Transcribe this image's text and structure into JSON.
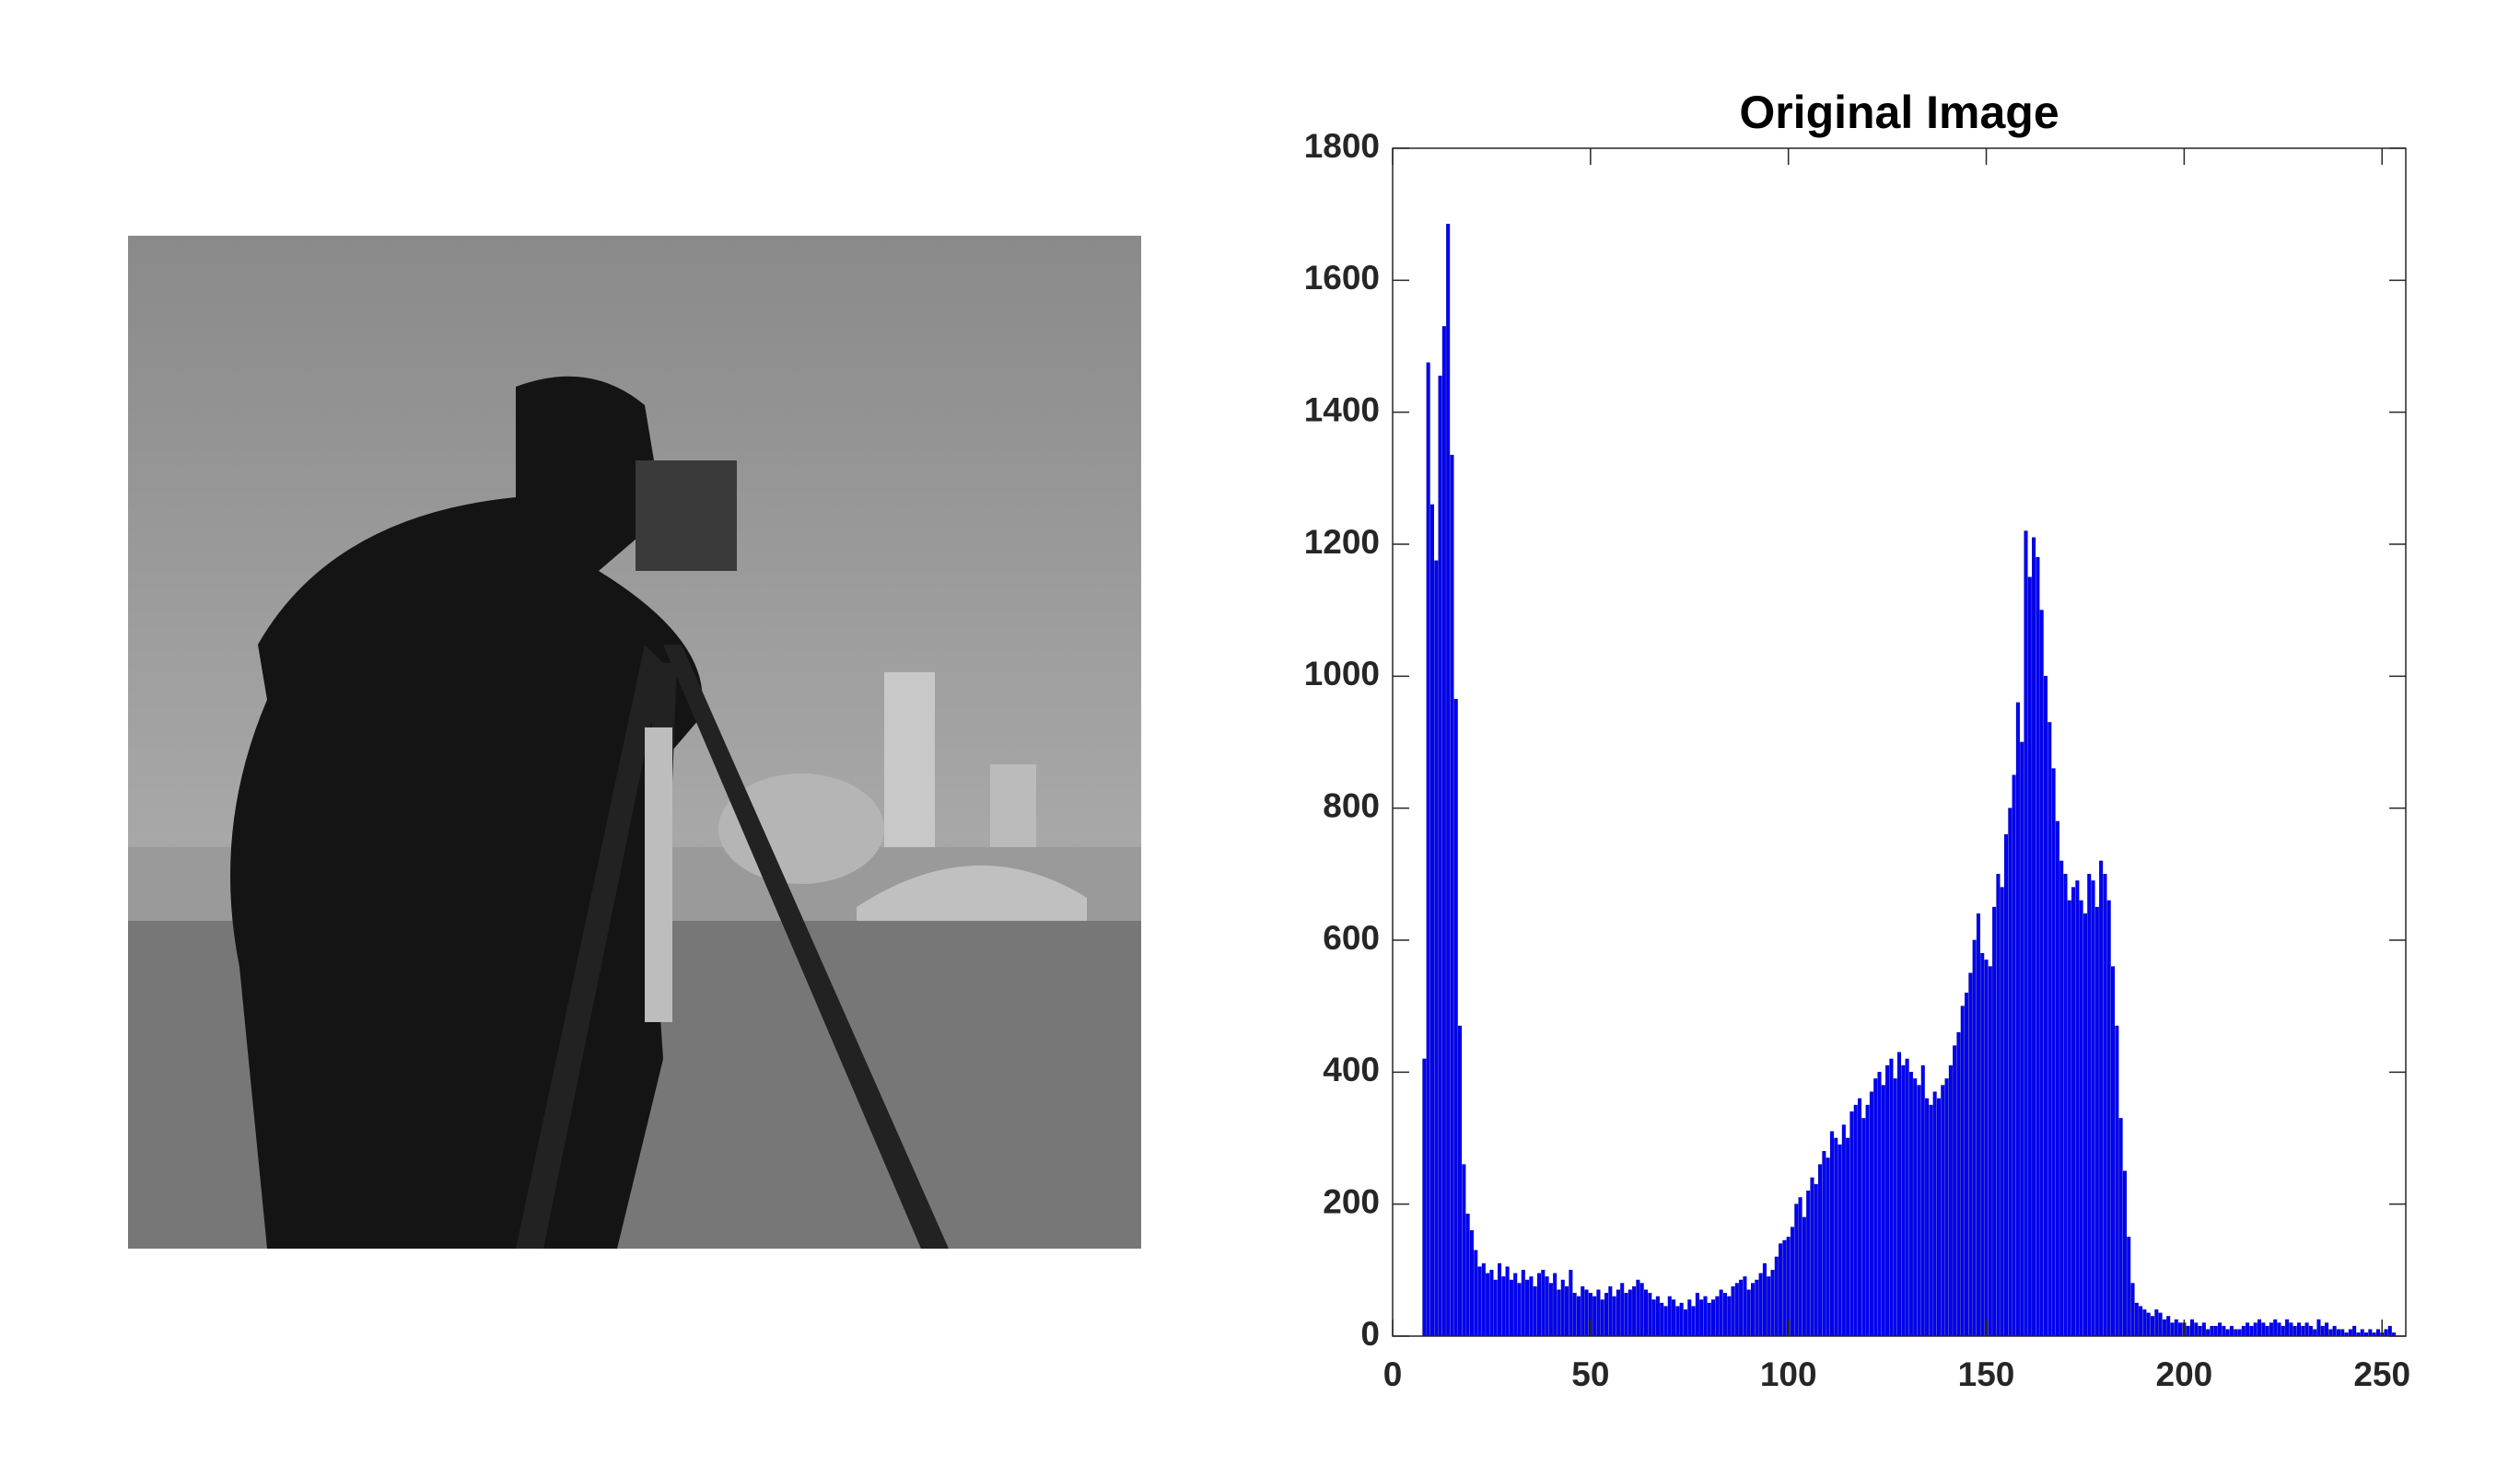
{
  "chart_data": {
    "type": "bar",
    "title": "Original Image",
    "x": [
      0,
      1,
      2,
      3,
      4,
      5,
      6,
      7,
      8,
      9,
      10,
      11,
      12,
      13,
      14,
      15,
      16,
      17,
      18,
      19,
      20,
      21,
      22,
      23,
      24,
      25,
      26,
      27,
      28,
      29,
      30,
      31,
      32,
      33,
      34,
      35,
      36,
      37,
      38,
      39,
      40,
      41,
      42,
      43,
      44,
      45,
      46,
      47,
      48,
      49,
      50,
      51,
      52,
      53,
      54,
      55,
      56,
      57,
      58,
      59,
      60,
      61,
      62,
      63,
      64,
      65,
      66,
      67,
      68,
      69,
      70,
      71,
      72,
      73,
      74,
      75,
      76,
      77,
      78,
      79,
      80,
      81,
      82,
      83,
      84,
      85,
      86,
      87,
      88,
      89,
      90,
      91,
      92,
      93,
      94,
      95,
      96,
      97,
      98,
      99,
      100,
      101,
      102,
      103,
      104,
      105,
      106,
      107,
      108,
      109,
      110,
      111,
      112,
      113,
      114,
      115,
      116,
      117,
      118,
      119,
      120,
      121,
      122,
      123,
      124,
      125,
      126,
      127,
      128,
      129,
      130,
      131,
      132,
      133,
      134,
      135,
      136,
      137,
      138,
      139,
      140,
      141,
      142,
      143,
      144,
      145,
      146,
      147,
      148,
      149,
      150,
      151,
      152,
      153,
      154,
      155,
      156,
      157,
      158,
      159,
      160,
      161,
      162,
      163,
      164,
      165,
      166,
      167,
      168,
      169,
      170,
      171,
      172,
      173,
      174,
      175,
      176,
      177,
      178,
      179,
      180,
      181,
      182,
      183,
      184,
      185,
      186,
      187,
      188,
      189,
      190,
      191,
      192,
      193,
      194,
      195,
      196,
      197,
      198,
      199,
      200,
      201,
      202,
      203,
      204,
      205,
      206,
      207,
      208,
      209,
      210,
      211,
      212,
      213,
      214,
      215,
      216,
      217,
      218,
      219,
      220,
      221,
      222,
      223,
      224,
      225,
      226,
      227,
      228,
      229,
      230,
      231,
      232,
      233,
      234,
      235,
      236,
      237,
      238,
      239,
      240,
      241,
      242,
      243,
      244,
      245,
      246,
      247,
      248,
      249,
      250,
      251,
      252,
      253,
      254,
      255
    ],
    "values": [
      0,
      0,
      0,
      0,
      0,
      0,
      0,
      0,
      420,
      1475,
      1260,
      1175,
      1455,
      1530,
      1685,
      1335,
      965,
      470,
      260,
      185,
      160,
      130,
      105,
      110,
      95,
      100,
      85,
      110,
      90,
      105,
      85,
      95,
      80,
      100,
      85,
      90,
      75,
      95,
      100,
      90,
      80,
      95,
      70,
      85,
      75,
      100,
      65,
      60,
      75,
      70,
      65,
      60,
      70,
      55,
      65,
      75,
      60,
      70,
      80,
      65,
      70,
      75,
      85,
      80,
      70,
      65,
      55,
      60,
      50,
      45,
      60,
      55,
      45,
      50,
      40,
      55,
      45,
      65,
      55,
      60,
      50,
      55,
      60,
      70,
      65,
      60,
      75,
      80,
      85,
      90,
      70,
      80,
      85,
      95,
      110,
      90,
      100,
      120,
      140,
      145,
      150,
      165,
      200,
      210,
      180,
      220,
      240,
      230,
      260,
      280,
      270,
      310,
      300,
      290,
      320,
      300,
      340,
      350,
      360,
      330,
      350,
      370,
      390,
      400,
      380,
      410,
      420,
      390,
      430,
      410,
      420,
      400,
      390,
      380,
      410,
      360,
      350,
      370,
      360,
      380,
      390,
      410,
      440,
      460,
      500,
      520,
      550,
      600,
      640,
      580,
      570,
      560,
      650,
      700,
      680,
      760,
      800,
      850,
      960,
      900,
      1220,
      1150,
      1210,
      1180,
      1100,
      1000,
      930,
      860,
      780,
      720,
      700,
      660,
      680,
      690,
      660,
      640,
      700,
      690,
      650,
      720,
      700,
      660,
      560,
      470,
      330,
      250,
      150,
      80,
      50,
      45,
      40,
      35,
      30,
      40,
      35,
      25,
      30,
      20,
      25,
      20,
      20,
      15,
      25,
      20,
      15,
      20,
      10,
      15,
      15,
      20,
      15,
      10,
      15,
      10,
      10,
      15,
      20,
      15,
      20,
      25,
      20,
      15,
      20,
      25,
      20,
      15,
      25,
      20,
      15,
      20,
      15,
      20,
      15,
      10,
      25,
      15,
      20,
      10,
      15,
      10,
      10,
      5,
      10,
      15,
      5,
      10,
      5,
      10,
      5,
      10,
      5,
      10,
      15,
      5,
      0,
      0
    ],
    "color": "#0000ff",
    "xlim": [
      0,
      256
    ],
    "xticks": [
      0,
      50,
      100,
      150,
      200,
      250
    ],
    "ylim": [
      0,
      1800
    ],
    "yticks": [
      0,
      200,
      400,
      600,
      800,
      1000,
      1200,
      1400,
      1600,
      1800
    ]
  }
}
